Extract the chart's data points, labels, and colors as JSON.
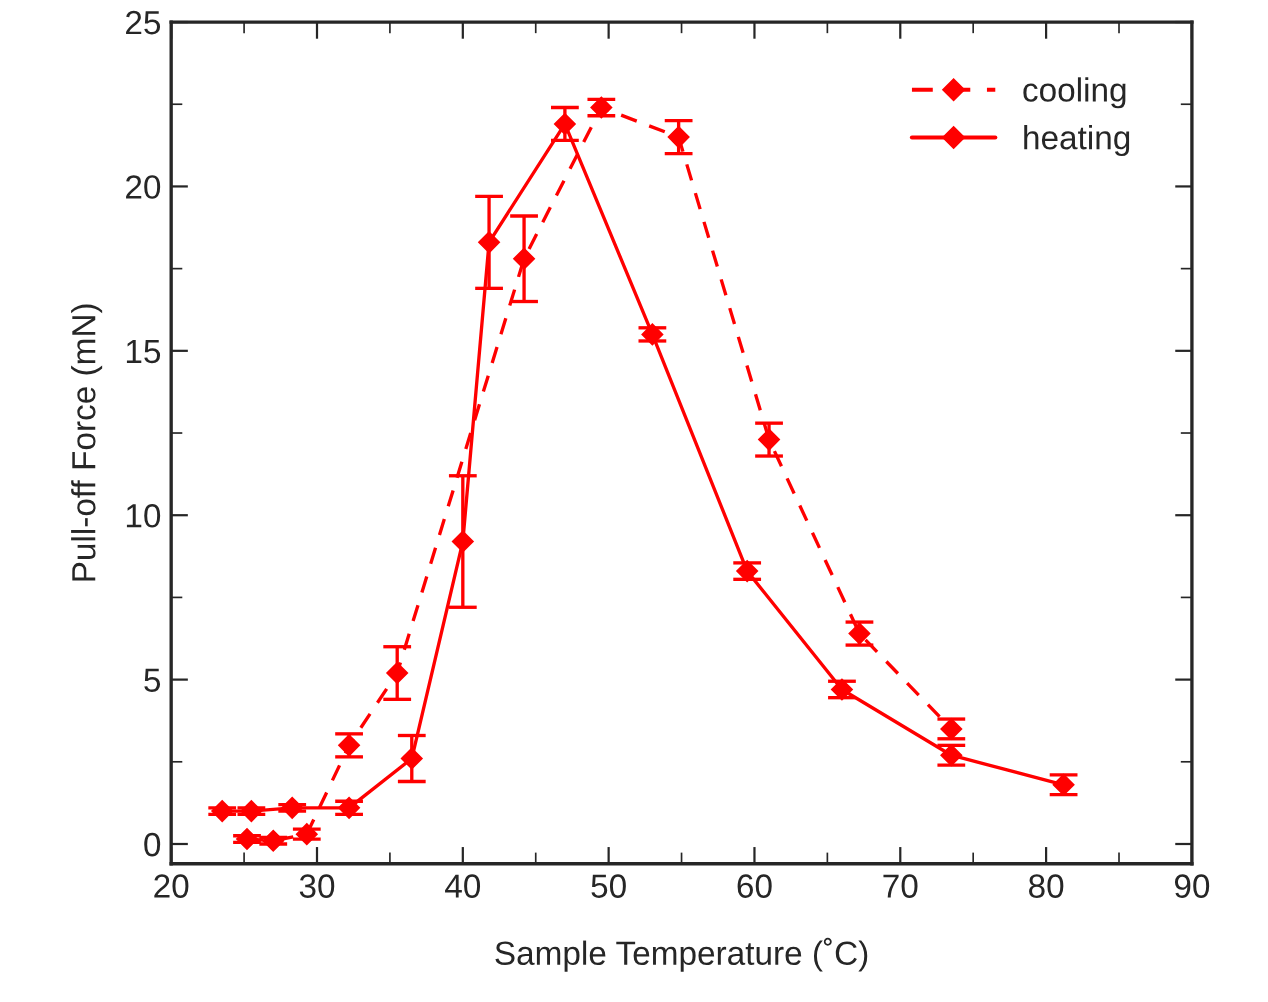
{
  "chart_data": {
    "type": "line",
    "xlabel": "Sample Temperature (˚C)",
    "ylabel": "Pull-off Force (mN)",
    "xlim": [
      20,
      90
    ],
    "xticks": [
      20,
      30,
      40,
      50,
      60,
      70,
      80,
      90
    ],
    "ylim": [
      -0.6,
      25
    ],
    "yticks": [
      0,
      5,
      10,
      15,
      20,
      25
    ],
    "legend": "top right",
    "marker": "diamond",
    "grid": false,
    "series": [
      {
        "name": "cooling",
        "color": "#ff0000",
        "line_style": "dashed",
        "x": [
          25.2,
          27,
          29.3,
          32.2,
          35.5,
          44.2,
          49.5,
          54.8,
          61,
          67.2,
          73.5
        ],
        "values": [
          0.15,
          0.1,
          0.3,
          3.0,
          5.2,
          17.8,
          22.4,
          21.5,
          12.3,
          6.4,
          3.5
        ],
        "errors": [
          0.1,
          0.1,
          0.15,
          0.35,
          0.8,
          1.3,
          0.25,
          0.5,
          0.5,
          0.35,
          0.3
        ]
      },
      {
        "name": "heating",
        "color": "#ff0000",
        "line_style": "solid",
        "x": [
          23.5,
          25.5,
          28.3,
          32.2,
          36.5,
          40,
          41.8,
          47,
          53,
          59.5,
          66,
          73.5,
          81.2
        ],
        "values": [
          1.0,
          1.0,
          1.1,
          1.1,
          2.6,
          9.2,
          18.3,
          21.9,
          15.5,
          8.3,
          4.7,
          2.7,
          1.8
        ],
        "errors": [
          0.1,
          0.1,
          0.1,
          0.2,
          0.7,
          2.0,
          1.4,
          0.5,
          0.2,
          0.25,
          0.25,
          0.3,
          0.3
        ]
      }
    ]
  }
}
